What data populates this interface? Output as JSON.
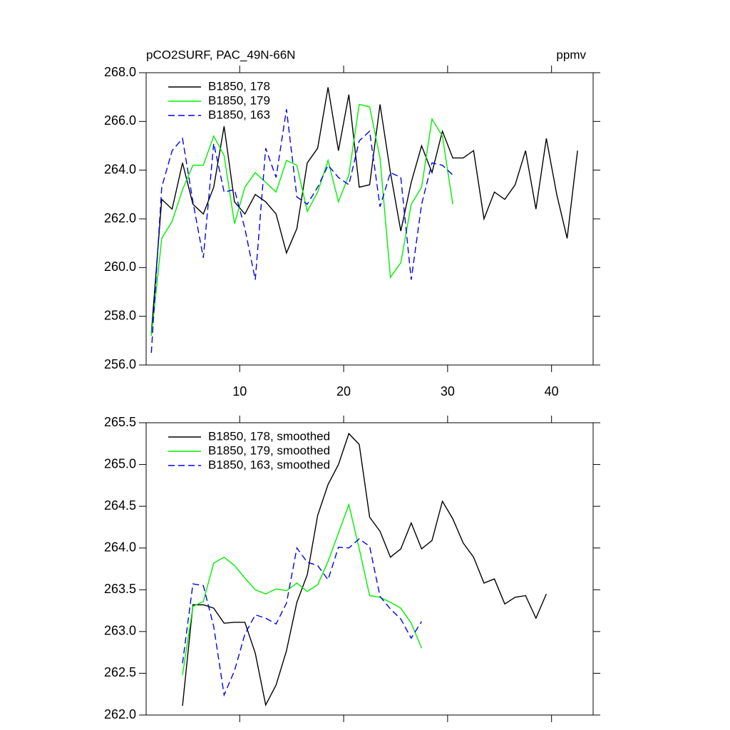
{
  "chart_data": [
    {
      "type": "line",
      "title": "pCO2SURF, PAC_49N-66N",
      "units": "ppmv",
      "xlim": [
        1,
        44
      ],
      "xticks": [
        10,
        20,
        30,
        40
      ],
      "x_tick_labels": true,
      "ylim": [
        256,
        268
      ],
      "yticks": [
        {
          "value": 256,
          "label": "256.0"
        },
        {
          "value": 258,
          "label": "258.0"
        },
        {
          "value": 260,
          "label": "260.0"
        },
        {
          "value": 262,
          "label": "262.0"
        },
        {
          "value": 264,
          "label": "264.0"
        },
        {
          "value": 266,
          "label": "266.0"
        },
        {
          "value": 268,
          "label": "268.0"
        }
      ],
      "legend": "top-left",
      "series": [
        {
          "name": "B1850, 178",
          "color": "#000000",
          "dash": false,
          "x": [
            1.5,
            2.5,
            3.5,
            4.5,
            5.5,
            6.5,
            7.5,
            8.5,
            9.5,
            10.5,
            11.5,
            12.5,
            13.5,
            14.5,
            15.5,
            16.5,
            17.5,
            18.5,
            19.5,
            20.5,
            21.5,
            22.5,
            23.5,
            24.5,
            25.5,
            26.5,
            27.5,
            28.5,
            29.5,
            30.5,
            31.5,
            32.5,
            33.5,
            34.5,
            35.5,
            36.5,
            37.5,
            38.5,
            39.5,
            40.5,
            41.5,
            42.5
          ],
          "values": [
            257.3,
            262.8,
            262.4,
            264.3,
            262.6,
            262.2,
            263.3,
            265.8,
            262.7,
            262.2,
            263.0,
            262.7,
            262.2,
            260.6,
            261.6,
            264.3,
            264.9,
            267.4,
            264.8,
            267.1,
            263.3,
            263.4,
            266.7,
            263.9,
            261.5,
            263.5,
            265.0,
            263.9,
            265.6,
            264.5,
            264.5,
            264.8,
            262.0,
            263.1,
            262.8,
            263.4,
            264.8,
            262.4,
            265.3,
            263.0,
            261.2,
            264.8
          ]
        },
        {
          "name": "B1850, 179",
          "color": "#00ee00",
          "dash": false,
          "x": [
            1.5,
            2.5,
            3.5,
            4.5,
            5.5,
            6.5,
            7.5,
            8.5,
            9.5,
            10.5,
            11.5,
            12.5,
            13.5,
            14.5,
            15.5,
            16.5,
            17.5,
            18.5,
            19.5,
            20.5,
            21.5,
            22.5,
            23.5,
            24.5,
            25.5,
            26.5,
            27.5,
            28.5,
            29.5,
            30.5
          ],
          "values": [
            257.2,
            261.2,
            261.9,
            263.2,
            264.2,
            264.2,
            265.4,
            264.6,
            261.8,
            263.3,
            263.9,
            263.5,
            263.1,
            264.4,
            264.2,
            262.3,
            263.1,
            264.4,
            262.7,
            263.8,
            266.7,
            266.6,
            264.5,
            259.6,
            260.2,
            262.6,
            263.3,
            266.1,
            265.4,
            262.6
          ]
        },
        {
          "name": "B1850, 163",
          "color": "#0000ee",
          "dash": true,
          "x": [
            1.5,
            2.5,
            3.5,
            4.5,
            5.5,
            6.5,
            7.5,
            8.5,
            9.5,
            10.5,
            11.5,
            12.5,
            13.5,
            14.5,
            15.5,
            16.5,
            17.5,
            18.5,
            19.5,
            20.5,
            21.5,
            22.5,
            23.5,
            24.5,
            25.5,
            26.5,
            27.5,
            28.5,
            29.5,
            30.5
          ],
          "values": [
            256.5,
            263.3,
            264.8,
            265.3,
            262.7,
            260.4,
            265.1,
            263.1,
            263.2,
            261.6,
            259.5,
            264.9,
            263.7,
            266.5,
            262.9,
            262.6,
            263.3,
            264.2,
            263.7,
            263.4,
            265.2,
            265.6,
            262.5,
            263.9,
            263.7,
            259.5,
            262.6,
            264.3,
            264.2,
            263.8
          ]
        }
      ]
    },
    {
      "type": "line",
      "xlim": [
        1,
        44
      ],
      "xticks": [
        10,
        20,
        30,
        40
      ],
      "x_tick_labels": false,
      "ylim": [
        262,
        265.5
      ],
      "yticks": [
        {
          "value": 262,
          "label": "262.0"
        },
        262.5,
        {
          "value": 263,
          "label": "263.0"
        },
        263.5,
        {
          "value": 264,
          "label": "264.0"
        },
        264.5,
        {
          "value": 265,
          "label": "265.0"
        },
        265.5
      ],
      "legend": "top-left",
      "series": [
        {
          "name": "B1850, 178, smoothed",
          "color": "#000000",
          "dash": false,
          "x": [
            4.5,
            5.5,
            6.5,
            7.5,
            8.5,
            9.5,
            10.5,
            11.5,
            12.5,
            13.5,
            14.5,
            15.5,
            16.5,
            17.5,
            18.5,
            19.5,
            20.5,
            21.5,
            22.5,
            23.5,
            24.5,
            25.5,
            26.5,
            27.5,
            28.5,
            29.5,
            30.5,
            31.5,
            32.5,
            33.5,
            34.5,
            35.5,
            36.5,
            37.5,
            38.5,
            39.5
          ],
          "values": [
            262.11,
            263.32,
            263.32,
            263.28,
            263.1,
            263.11,
            263.11,
            262.74,
            262.12,
            262.36,
            262.77,
            263.35,
            263.68,
            264.39,
            264.76,
            265.0,
            265.37,
            265.24,
            264.37,
            264.2,
            263.89,
            263.99,
            264.3,
            263.99,
            264.09,
            264.56,
            264.35,
            264.06,
            263.89,
            263.58,
            263.63,
            263.33,
            263.41,
            263.43,
            263.16,
            263.45
          ]
        },
        {
          "name": "B1850, 179, smoothed",
          "color": "#00ee00",
          "dash": false,
          "x": [
            4.5,
            5.5,
            6.5,
            7.5,
            8.5,
            9.5,
            10.5,
            11.5,
            12.5,
            13.5,
            14.5,
            15.5,
            16.5,
            17.5,
            18.5,
            19.5,
            20.5,
            21.5,
            22.5,
            23.5,
            24.5,
            25.5,
            26.5,
            27.5
          ],
          "values": [
            262.48,
            263.3,
            263.36,
            263.82,
            263.89,
            263.79,
            263.64,
            263.5,
            263.45,
            263.51,
            263.49,
            263.58,
            263.48,
            263.56,
            263.84,
            264.18,
            264.52,
            263.99,
            263.43,
            263.41,
            263.35,
            263.28,
            263.1,
            262.8
          ]
        },
        {
          "name": "B1850, 163, smoothed",
          "color": "#0000ee",
          "dash": true,
          "x": [
            4.5,
            5.5,
            6.5,
            7.5,
            8.5,
            9.5,
            10.5,
            11.5,
            12.5,
            13.5,
            14.5,
            15.5,
            16.5,
            17.5,
            18.5,
            19.5,
            20.5,
            21.5,
            22.5,
            23.5,
            24.5,
            25.5,
            26.5,
            27.5
          ],
          "values": [
            262.62,
            263.57,
            263.55,
            263.06,
            262.24,
            262.53,
            262.97,
            263.2,
            263.16,
            263.09,
            263.34,
            264.0,
            263.83,
            263.79,
            263.62,
            264.01,
            264.0,
            264.11,
            264.02,
            263.42,
            263.27,
            263.15,
            262.92,
            263.12
          ]
        }
      ]
    }
  ]
}
